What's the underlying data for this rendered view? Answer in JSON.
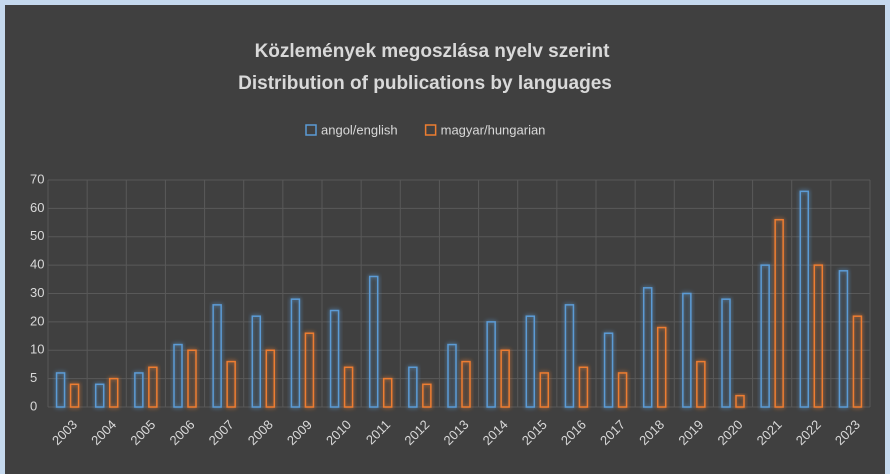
{
  "chart_data": {
    "type": "bar",
    "title": [
      "Közlemények megoszlása nyelv szerint",
      "Distribution of publications by languages"
    ],
    "categories": [
      "2003",
      "2004",
      "2005",
      "2006",
      "2007",
      "2008",
      "2009",
      "2010",
      "2011",
      "2012",
      "2013",
      "2014",
      "2015",
      "2016",
      "2017",
      "2018",
      "2019",
      "2020",
      "2021",
      "2022",
      "2023"
    ],
    "series": [
      {
        "name": "angol/english",
        "color": "#5b9bd5",
        "values": [
          6,
          4,
          6,
          12,
          26,
          22,
          28,
          24,
          36,
          7,
          12,
          20,
          22,
          26,
          16,
          32,
          30,
          28,
          40,
          66,
          38
        ]
      },
      {
        "name": "magyar/hungarian",
        "color": "#ed7d31",
        "values": [
          4,
          5,
          7,
          10,
          8,
          10,
          16,
          7,
          5,
          4,
          8,
          10,
          6,
          7,
          6,
          18,
          8,
          2,
          56,
          40,
          22
        ]
      }
    ],
    "ylim": [
      0,
      70
    ],
    "yticks": [
      0,
      5,
      10,
      20,
      30,
      40,
      50,
      60,
      70
    ],
    "grid": true,
    "legend": "top"
  }
}
